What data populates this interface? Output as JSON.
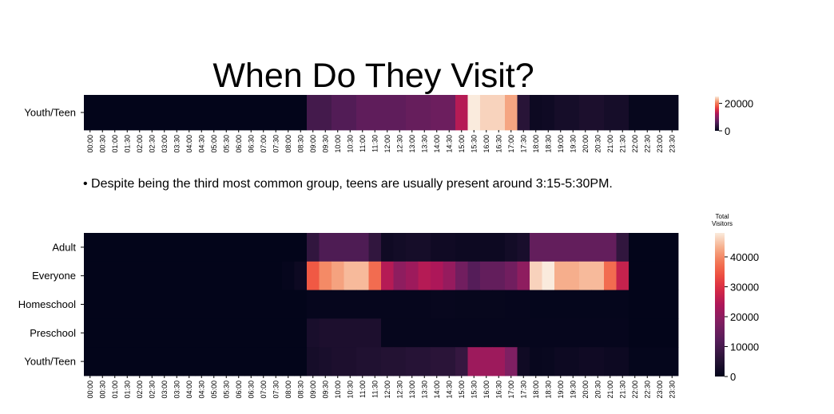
{
  "title": "When Do They Visit?",
  "note": "• Despite being the third most common group, teens are usually present around 3:15-5:30PM.",
  "chart_data": [
    {
      "type": "heatmap",
      "x": [
        "00:00",
        "00:30",
        "01:00",
        "01:30",
        "02:00",
        "02:30",
        "03:00",
        "03:30",
        "04:00",
        "04:30",
        "05:00",
        "05:30",
        "06:00",
        "06:30",
        "07:00",
        "07:30",
        "08:00",
        "08:30",
        "09:00",
        "09:30",
        "10:00",
        "10:30",
        "11:00",
        "11:30",
        "12:00",
        "12:30",
        "13:00",
        "13:30",
        "14:00",
        "14:30",
        "15:00",
        "15:30",
        "16:00",
        "16:30",
        "17:00",
        "17:30",
        "18:00",
        "18:30",
        "19:00",
        "19:30",
        "20:00",
        "20:30",
        "21:00",
        "21:30",
        "22:00",
        "22:30",
        "23:00",
        "23:30"
      ],
      "y": [
        "Youth/Teen"
      ],
      "values": [
        [
          0,
          0,
          0,
          0,
          0,
          0,
          0,
          0,
          0,
          0,
          0,
          0,
          0,
          0,
          0,
          0,
          0,
          0,
          5000,
          5000,
          6000,
          6000,
          7000,
          7000,
          7000,
          7000,
          7500,
          7500,
          8000,
          8000,
          13000,
          25000,
          24000,
          24000,
          22000,
          3000,
          800,
          1000,
          1500,
          1500,
          2000,
          2000,
          1500,
          1500,
          300,
          300,
          300,
          300
        ]
      ],
      "colorbar": {
        "label": "",
        "ticks": [
          0,
          20000
        ],
        "vmin": 0,
        "vmax": 25000
      }
    },
    {
      "type": "heatmap",
      "x": [
        "00:00",
        "00:30",
        "01:00",
        "01:30",
        "02:00",
        "02:30",
        "03:00",
        "03:30",
        "04:00",
        "04:30",
        "05:00",
        "05:30",
        "06:00",
        "06:30",
        "07:00",
        "07:30",
        "08:00",
        "08:30",
        "09:00",
        "09:30",
        "10:00",
        "10:30",
        "11:00",
        "11:30",
        "12:00",
        "12:30",
        "13:00",
        "13:30",
        "14:00",
        "14:30",
        "15:00",
        "15:30",
        "16:00",
        "16:30",
        "17:00",
        "17:30",
        "18:00",
        "18:30",
        "19:00",
        "19:30",
        "20:00",
        "20:30",
        "21:00",
        "21:30",
        "22:00",
        "22:30",
        "23:00",
        "23:30"
      ],
      "y": [
        "Adult",
        "Everyone",
        "Homeschool",
        "Preschool",
        "Youth/Teen"
      ],
      "values": [
        [
          0,
          0,
          0,
          0,
          0,
          0,
          0,
          0,
          0,
          0,
          0,
          0,
          0,
          0,
          0,
          0,
          0,
          0,
          7000,
          11000,
          11000,
          11000,
          11000,
          7000,
          2000,
          2500,
          3000,
          3000,
          2000,
          2000,
          1500,
          1500,
          1500,
          1500,
          2500,
          3500,
          14000,
          14000,
          14000,
          14000,
          14000,
          14000,
          14000,
          7000,
          0,
          0,
          0,
          0
        ],
        [
          0,
          0,
          0,
          0,
          0,
          0,
          0,
          0,
          0,
          0,
          0,
          0,
          0,
          0,
          0,
          0,
          500,
          1500,
          35000,
          40000,
          42000,
          44000,
          44000,
          37000,
          25000,
          20000,
          22000,
          25000,
          24000,
          21000,
          16000,
          12000,
          14000,
          14000,
          16000,
          20000,
          46000,
          48000,
          43000,
          43000,
          44000,
          44000,
          37000,
          27000,
          0,
          0,
          0,
          0
        ],
        [
          0,
          0,
          0,
          0,
          0,
          0,
          0,
          0,
          0,
          0,
          0,
          0,
          0,
          0,
          0,
          0,
          0,
          0,
          500,
          500,
          500,
          500,
          500,
          500,
          500,
          500,
          500,
          500,
          800,
          800,
          600,
          600,
          600,
          600,
          500,
          500,
          300,
          300,
          300,
          300,
          300,
          300,
          300,
          300,
          0,
          0,
          0,
          0
        ],
        [
          0,
          0,
          0,
          0,
          0,
          0,
          0,
          0,
          0,
          0,
          0,
          0,
          0,
          0,
          0,
          0,
          0,
          0,
          3500,
          4000,
          4000,
          4000,
          4000,
          4000,
          500,
          500,
          500,
          500,
          500,
          500,
          500,
          500,
          500,
          500,
          500,
          500,
          500,
          500,
          500,
          500,
          500,
          500,
          500,
          500,
          0,
          0,
          0,
          0
        ],
        [
          0,
          0,
          0,
          0,
          0,
          0,
          0,
          0,
          0,
          0,
          0,
          0,
          0,
          0,
          0,
          0,
          0,
          0,
          3000,
          3500,
          4000,
          4000,
          4500,
          4500,
          5000,
          5000,
          5500,
          5500,
          6000,
          6000,
          7500,
          22000,
          22000,
          22000,
          18000,
          2000,
          800,
          1000,
          1500,
          1500,
          2000,
          2000,
          1500,
          1500,
          300,
          300,
          300,
          300
        ]
      ],
      "colorbar": {
        "label": "Total\nVisitors",
        "ticks": [
          0,
          10000,
          20000,
          30000,
          40000
        ],
        "vmin": 0,
        "vmax": 48000
      }
    }
  ]
}
